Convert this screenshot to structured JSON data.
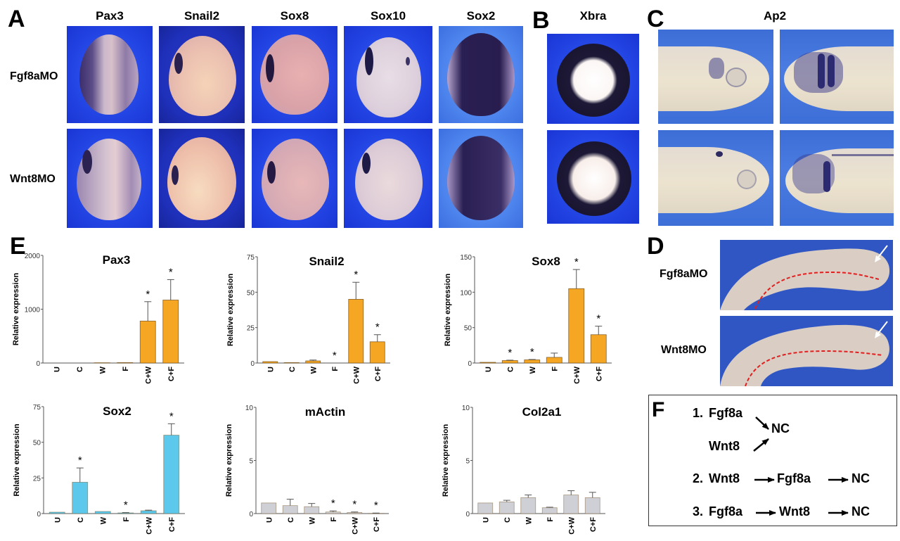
{
  "panels": {
    "A": {
      "letter": "A",
      "columns": [
        "Pax3",
        "Snail2",
        "Sox8",
        "Sox10",
        "Sox2"
      ],
      "rows": [
        "Fgf8aMO",
        "Wnt8MO"
      ]
    },
    "B": {
      "letter": "B",
      "column": "Xbra"
    },
    "C": {
      "letter": "C",
      "column": "Ap2"
    },
    "D": {
      "letter": "D",
      "rows": [
        "Fgf8aMO",
        "Wnt8MO"
      ]
    },
    "E": {
      "letter": "E"
    },
    "F": {
      "letter": "F",
      "model1": {
        "label": "1.",
        "a": "Fgf8a",
        "b": "Wnt8",
        "target": "NC"
      },
      "model2": {
        "label": "2.",
        "a": "Wnt8",
        "b": "Fgf8a",
        "target": "NC"
      },
      "model3": {
        "label": "3.",
        "a": "Fgf8a",
        "b": "Wnt8",
        "target": "NC"
      }
    }
  },
  "colors": {
    "orange": "#f5a623",
    "cyan": "#5bc8ec",
    "gray": "#cfcfd6",
    "axis": "#555555"
  },
  "chart_data": [
    {
      "type": "bar",
      "title": "Pax3",
      "ylabel": "Relative expression",
      "categories": [
        "U",
        "C",
        "W",
        "F",
        "C+W",
        "C+F"
      ],
      "values": [
        1,
        1,
        5,
        8,
        780,
        1170
      ],
      "errors": [
        0,
        0,
        0,
        0,
        360,
        380
      ],
      "significant": [
        false,
        false,
        false,
        false,
        true,
        true
      ],
      "ylim": [
        0,
        2000
      ],
      "yticks": [
        0,
        1000,
        2000
      ],
      "color": "orange"
    },
    {
      "type": "bar",
      "title": "Snail2",
      "ylabel": "Relative expression",
      "categories": [
        "U",
        "C",
        "W",
        "F",
        "C+W",
        "C+F"
      ],
      "values": [
        1,
        0.3,
        1.5,
        0,
        45,
        15
      ],
      "errors": [
        0,
        0,
        0.6,
        0,
        12,
        5
      ],
      "significant": [
        false,
        false,
        false,
        true,
        true,
        true
      ],
      "ylim": [
        0,
        75
      ],
      "yticks": [
        0,
        25,
        50,
        75
      ],
      "color": "orange"
    },
    {
      "type": "bar",
      "title": "Sox8",
      "ylabel": "Relative expression",
      "categories": [
        "U",
        "C",
        "W",
        "F",
        "C+W",
        "C+F"
      ],
      "values": [
        1,
        3.5,
        4.5,
        8,
        105,
        40
      ],
      "errors": [
        0,
        0.5,
        0.5,
        6,
        27,
        12
      ],
      "significant": [
        false,
        true,
        true,
        false,
        true,
        true
      ],
      "ylim": [
        0,
        150
      ],
      "yticks": [
        0,
        50,
        100,
        150
      ],
      "color": "orange"
    },
    {
      "type": "bar",
      "title": "Sox2",
      "ylabel": "Relative expression",
      "categories": [
        "U",
        "C",
        "W",
        "F",
        "C+W",
        "C+F"
      ],
      "values": [
        1,
        22,
        1.5,
        0.5,
        2,
        55
      ],
      "errors": [
        0,
        10,
        0,
        0.2,
        0.4,
        8
      ],
      "significant": [
        false,
        true,
        false,
        true,
        false,
        true
      ],
      "ylim": [
        0,
        75
      ],
      "yticks": [
        0,
        25,
        50,
        75
      ],
      "color": "cyan"
    },
    {
      "type": "bar",
      "title": "mActin",
      "ylabel": "Relative expression",
      "categories": [
        "U",
        "C",
        "W",
        "F",
        "C+W",
        "C+F"
      ],
      "values": [
        1,
        0.75,
        0.65,
        0.15,
        0.1,
        0.03
      ],
      "errors": [
        0,
        0.6,
        0.3,
        0.1,
        0.05,
        0.02
      ],
      "significant": [
        false,
        false,
        false,
        true,
        true,
        true
      ],
      "ylim": [
        0,
        10
      ],
      "yticks": [
        0,
        5,
        10
      ],
      "color": "gray"
    },
    {
      "type": "bar",
      "title": "Col2a1",
      "ylabel": "Relative expression",
      "categories": [
        "U",
        "C",
        "W",
        "F",
        "C+W",
        "C+F"
      ],
      "values": [
        1,
        1.1,
        1.5,
        0.55,
        1.75,
        1.5
      ],
      "errors": [
        0,
        0.15,
        0.25,
        0.05,
        0.4,
        0.5
      ],
      "significant": [
        false,
        false,
        false,
        false,
        false,
        false
      ],
      "ylim": [
        0,
        10
      ],
      "yticks": [
        0,
        5,
        10
      ],
      "color": "gray"
    }
  ]
}
